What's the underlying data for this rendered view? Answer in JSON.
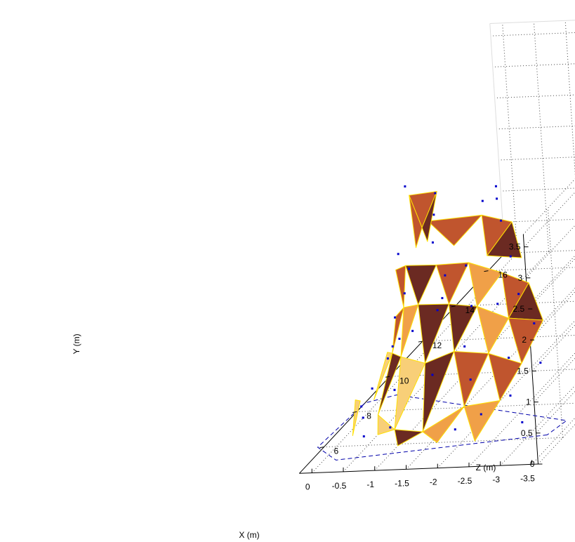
{
  "chart_data": {
    "type": "scatter",
    "subtype": "3d-surface-mesh",
    "title": "",
    "xlabel": "X (m)",
    "ylabel": "Y (m)",
    "zlabel": "Z (m)",
    "x_ticks": [
      "-3.5",
      "-3",
      "-2.5",
      "-2",
      "-1.5",
      "-1",
      "-0.5",
      "0"
    ],
    "y_ticks": [
      "0",
      "0.5",
      "1",
      "1.5",
      "2",
      "2.5",
      "3",
      "3.5"
    ],
    "z_ticks": [
      "6",
      "8",
      "10",
      "12",
      "14",
      "16"
    ],
    "xlim": [
      -3.6,
      0.2
    ],
    "ylim": [
      0,
      3.7
    ],
    "zlim": [
      4.5,
      17
    ],
    "grid": true,
    "box": true,
    "legend": "none",
    "colors": {
      "face_dark": "#6b2a22",
      "face_mid": "#c0552e",
      "face_light": "#f0a048",
      "face_pale": "#f8cf78",
      "edge": "#ffe000",
      "points": "#0000cc",
      "grid": "#444444",
      "footprint": "#0000aa"
    },
    "points": [
      {
        "x": -2.1,
        "y": 3.4,
        "z": 8.5
      },
      {
        "x": -2.1,
        "y": 3.2,
        "z": 8.5
      },
      {
        "x": -1.9,
        "y": 3.2,
        "z": 8.4
      },
      {
        "x": -1.1,
        "y": 3.3,
        "z": 8.6
      },
      {
        "x": -0.6,
        "y": 3.4,
        "z": 8.7
      },
      {
        "x": -0.2,
        "y": 2.1,
        "z": 9.5
      },
      {
        "x": -0.3,
        "y": 1.8,
        "z": 9.7
      },
      {
        "x": -2.6,
        "y": 1.9,
        "z": 7.6
      },
      {
        "x": -2.2,
        "y": 1.7,
        "z": 7.8
      },
      {
        "x": -1.7,
        "y": 1.6,
        "z": 8.1
      },
      {
        "x": -1.1,
        "y": 1.5,
        "z": 8.3
      },
      {
        "x": -0.6,
        "y": 1.1,
        "z": 8.6
      },
      {
        "x": -0.3,
        "y": 0.9,
        "z": 8.9
      },
      {
        "x": -0.1,
        "y": 0.7,
        "z": 9.2
      },
      {
        "x": 0.1,
        "y": 0.4,
        "z": 9.6
      },
      {
        "x": 0.1,
        "y": 0.2,
        "z": 8.6
      },
      {
        "x": -0.1,
        "y": 0.3,
        "z": 7.2
      },
      {
        "x": -0.2,
        "y": 0.2,
        "z": 6.9
      },
      {
        "x": -2.9,
        "y": 1.5,
        "z": 7.3
      },
      {
        "x": -3.1,
        "y": 1.0,
        "z": 6.8
      },
      {
        "x": -2.7,
        "y": 0.6,
        "z": 6.4
      },
      {
        "x": -2.3,
        "y": 0.4,
        "z": 6.1
      },
      {
        "x": -1.9,
        "y": 0.2,
        "z": 6.0
      },
      {
        "x": -1.4,
        "y": 0.9,
        "z": 6.7
      },
      {
        "x": -0.9,
        "y": 0.3,
        "z": 5.9
      },
      {
        "x": -0.5,
        "y": 0.2,
        "z": 5.8
      },
      {
        "x": -1.6,
        "y": 2.2,
        "z": 8.3
      },
      {
        "x": -1.2,
        "y": 2.0,
        "z": 8.5
      },
      {
        "x": -2.4,
        "y": 2.4,
        "z": 8.0
      },
      {
        "x": -1.8,
        "y": 1.2,
        "z": 7.2
      },
      {
        "x": -2.0,
        "y": 0.8,
        "z": 6.7
      },
      {
        "x": -0.4,
        "y": 1.6,
        "z": 9.0
      },
      {
        "x": -0.9,
        "y": 2.4,
        "z": 9.0
      },
      {
        "x": -2.6,
        "y": 1.1,
        "z": 6.8
      },
      {
        "x": -1.3,
        "y": 1.8,
        "z": 7.9
      },
      {
        "x": -0.7,
        "y": 0.6,
        "z": 7.0
      },
      {
        "x": 0.0,
        "y": 1.0,
        "z": 9.8
      },
      {
        "x": -3.0,
        "y": 0.3,
        "z": 5.9
      },
      {
        "x": -2.2,
        "y": 2.9,
        "z": 8.3
      },
      {
        "x": -1.0,
        "y": 2.9,
        "z": 8.8
      }
    ]
  }
}
